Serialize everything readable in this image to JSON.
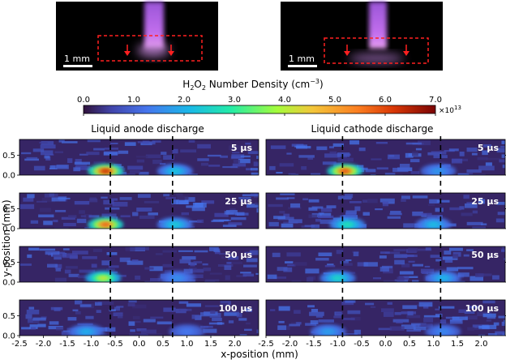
{
  "photos": [
    {
      "scale_bar": "1 mm"
    },
    {
      "scale_bar": "1 mm"
    }
  ],
  "colorbar": {
    "title_prefix": "H",
    "title_sub1": "2",
    "title_mid": "O",
    "title_sub2": "2",
    "title_suffix": " Number Density (cm",
    "title_sup": "−3",
    "title_close": ")",
    "ticks": [
      "0.0",
      "1.0",
      "2.0",
      "3.0",
      "4.0",
      "5.0",
      "6.0",
      "7.0"
    ],
    "multiplier_base": "×10",
    "multiplier_exp": "13",
    "range": [
      0,
      7
    ],
    "colormap": "turbo"
  },
  "columns": [
    {
      "title": "Liquid anode discharge"
    },
    {
      "title": "Liquid cathode discharge"
    }
  ],
  "time_labels": [
    "5 μs",
    "25 μs",
    "50 μs",
    "100 μs"
  ],
  "axes": {
    "ylabel": "y-position (mm)",
    "xlabel": "x-position (mm)",
    "y_ticks": [
      "0.5",
      "0.0"
    ],
    "x_ticks": [
      "-2.5",
      "-2.0",
      "-1.5",
      "-1.0",
      "-0.5",
      "0.0",
      "0.5",
      "1.0",
      "1.5",
      "2.0"
    ],
    "x_range": [
      -2.5,
      2.5
    ],
    "y_range": [
      0,
      0.9
    ]
  },
  "chart_data": {
    "type": "heatmap",
    "x_range_mm": [
      -2.5,
      2.5
    ],
    "y_range_mm": [
      0,
      0.9
    ],
    "colorbar_range": [
      0,
      7
    ],
    "colorbar_unit": "×10^13 cm^-3",
    "dashed_lines_x_mm": {
      "anode": [
        -0.6,
        0.7
      ],
      "cathode": [
        -0.9,
        1.15
      ]
    },
    "panels": [
      {
        "column": "Liquid anode discharge",
        "time": "5 μs",
        "hotspots": [
          {
            "x": -0.7,
            "peak": 6.4
          },
          {
            "x": 0.75,
            "peak": 2.3
          }
        ]
      },
      {
        "column": "Liquid anode discharge",
        "time": "25 μs",
        "hotspots": [
          {
            "x": -0.7,
            "peak": 5.8
          },
          {
            "x": 0.75,
            "peak": 2.4
          }
        ]
      },
      {
        "column": "Liquid anode discharge",
        "time": "50 μs",
        "hotspots": [
          {
            "x": -0.75,
            "peak": 4.2
          },
          {
            "x": 0.8,
            "peak": 1.6
          }
        ]
      },
      {
        "column": "Liquid anode discharge",
        "time": "100 μs",
        "hotspots": [
          {
            "x": -1.1,
            "peak": 2.0
          },
          {
            "x": 1.0,
            "peak": 1.3
          }
        ]
      },
      {
        "column": "Liquid cathode discharge",
        "time": "5 μs",
        "hotspots": [
          {
            "x": -0.85,
            "peak": 6.0
          },
          {
            "x": 1.1,
            "peak": 1.7
          }
        ]
      },
      {
        "column": "Liquid cathode discharge",
        "time": "25 μs",
        "hotspots": [
          {
            "x": -0.8,
            "peak": 2.8
          },
          {
            "x": 1.0,
            "peak": 2.2
          }
        ]
      },
      {
        "column": "Liquid cathode discharge",
        "time": "50 μs",
        "hotspots": [
          {
            "x": -1.0,
            "peak": 2.6
          },
          {
            "x": 1.2,
            "peak": 2.1
          }
        ]
      },
      {
        "column": "Liquid cathode discharge",
        "time": "100 μs",
        "hotspots": [
          {
            "x": -1.2,
            "peak": 1.8
          },
          {
            "x": 1.2,
            "peak": 1.5
          }
        ]
      }
    ]
  }
}
